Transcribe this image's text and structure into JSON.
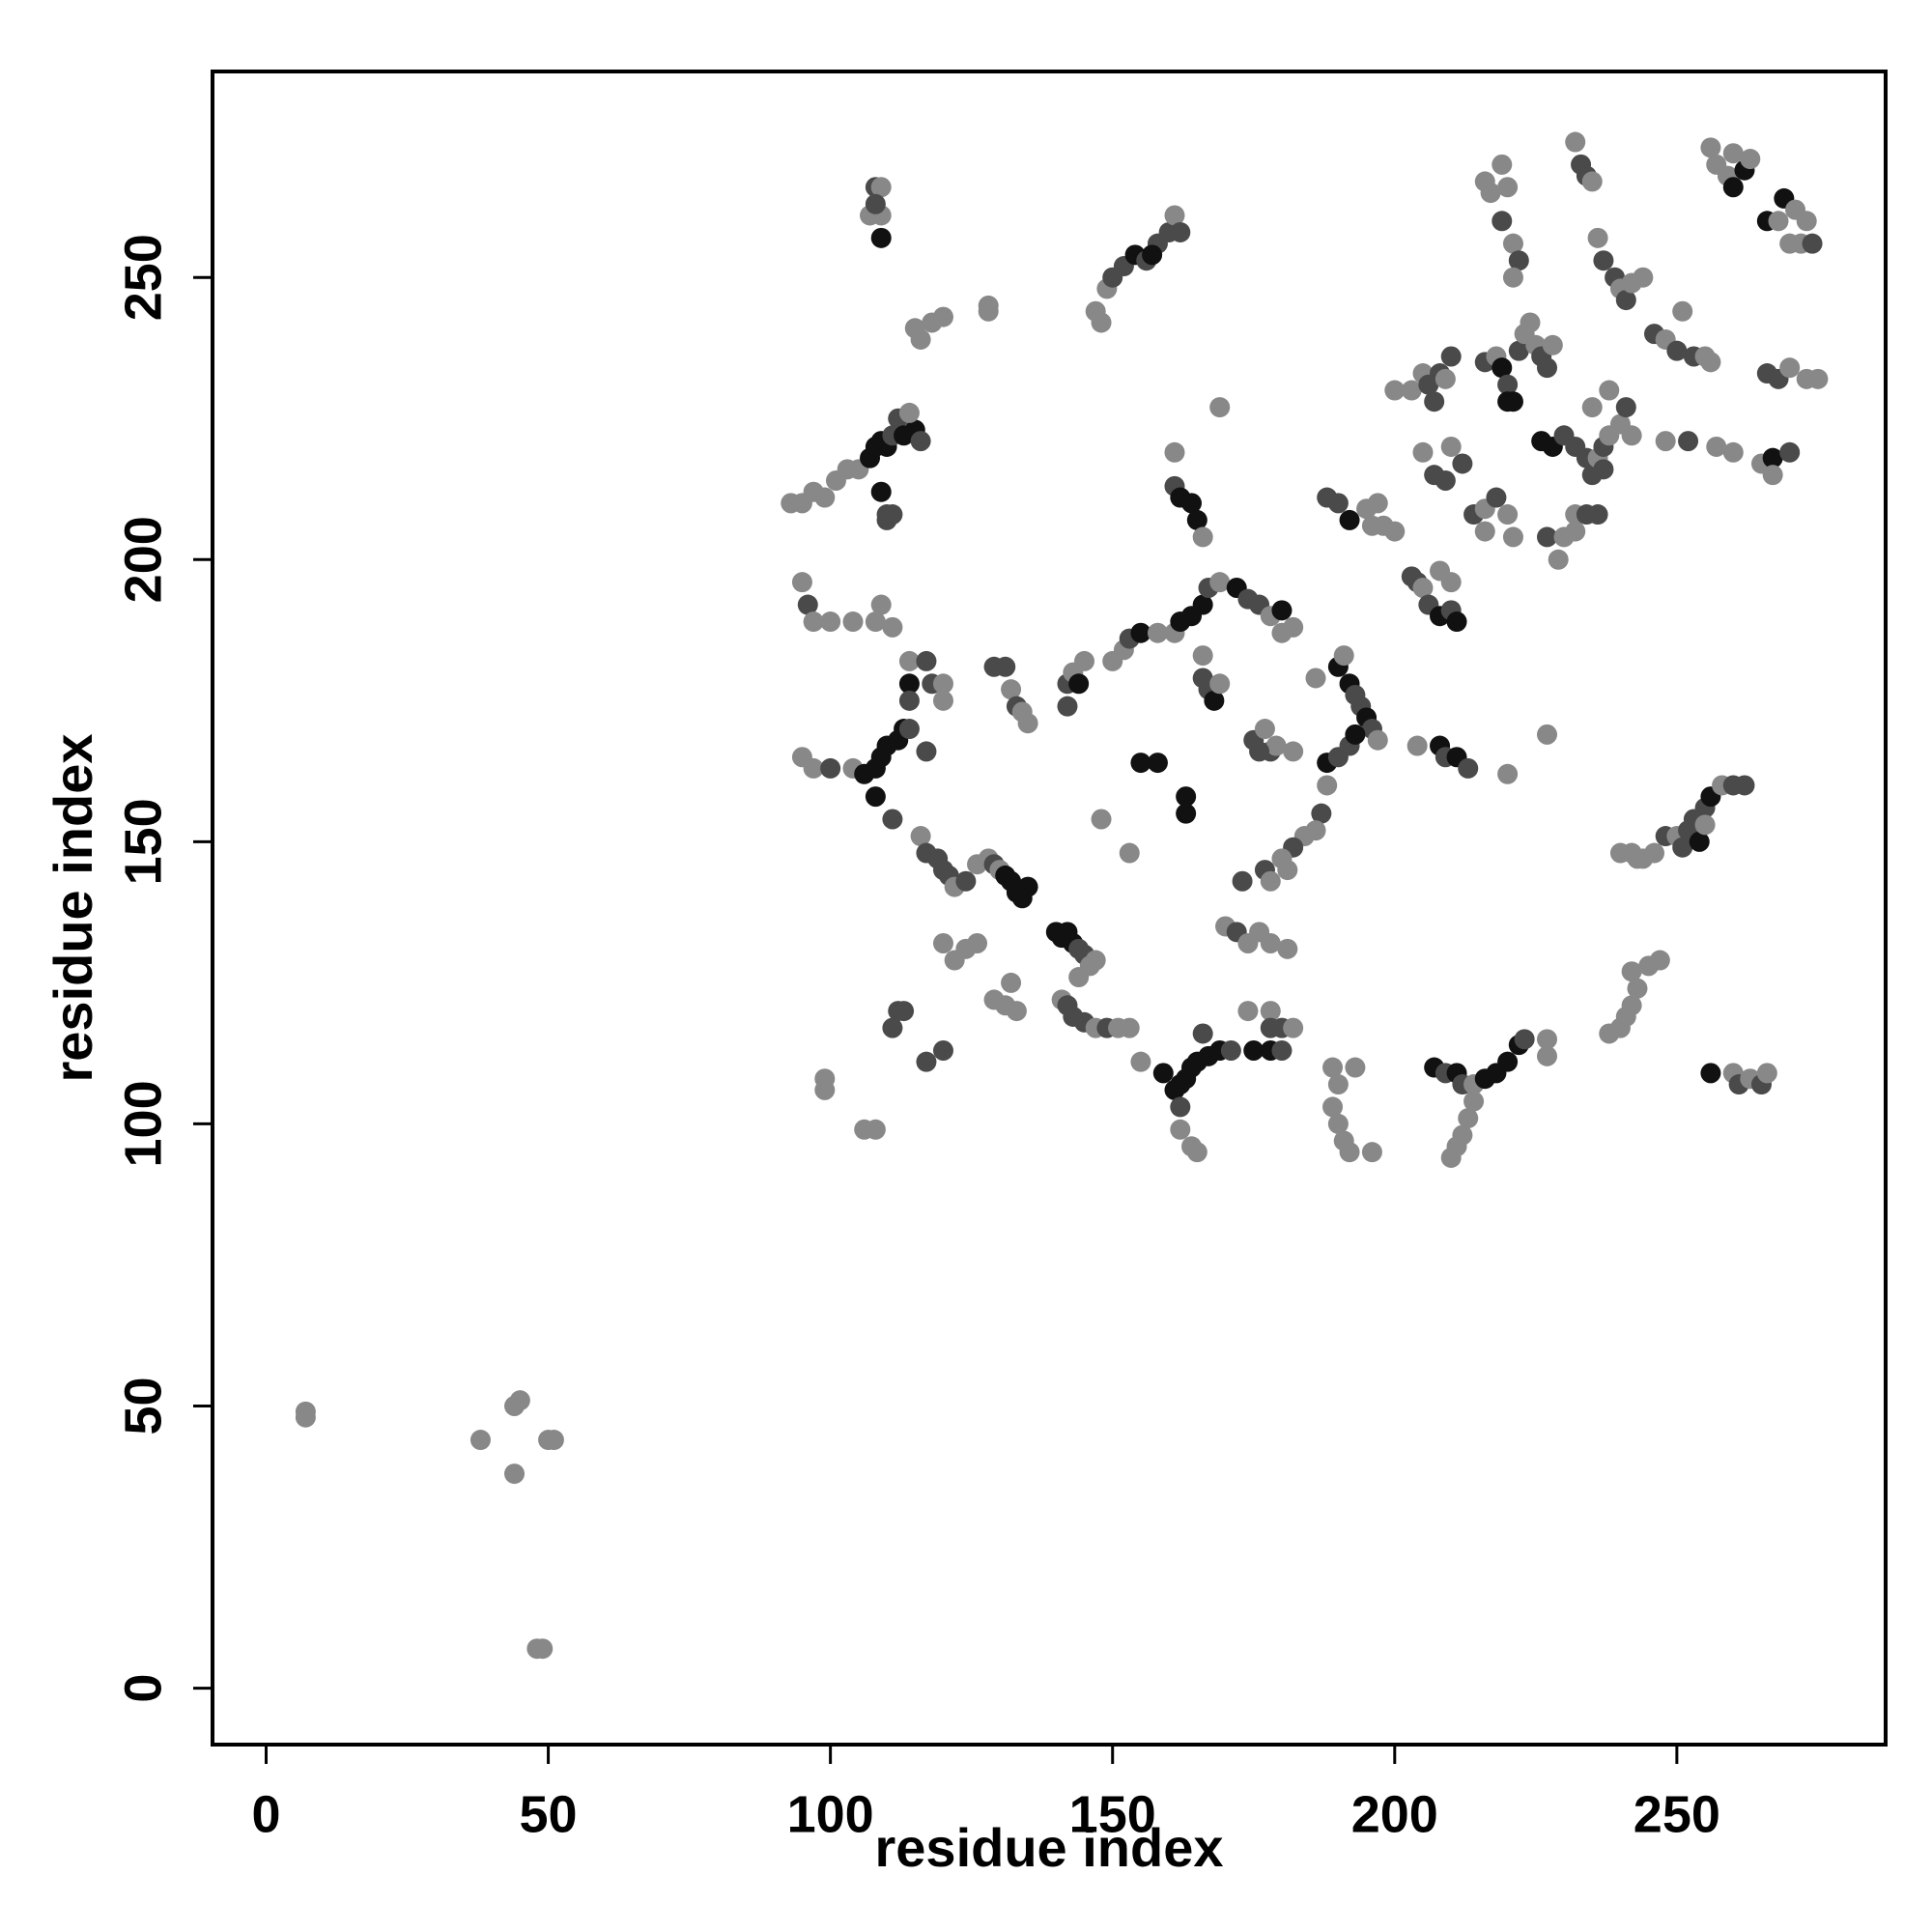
{
  "chart_data": {
    "type": "scatter",
    "x_label": "residue index",
    "y_label": "residue index",
    "xlim": [
      -9.5,
      287
    ],
    "ylim": [
      -10,
      286.5
    ],
    "xticks": [
      0,
      50,
      100,
      150,
      200,
      250
    ],
    "yticks": [
      0,
      50,
      100,
      150,
      200,
      250
    ],
    "x": [
      7,
      7,
      38,
      44,
      45,
      44,
      50,
      51,
      48,
      49,
      108,
      109,
      107,
      109,
      109,
      108,
      115,
      116,
      118,
      120,
      128,
      128,
      147,
      148,
      149,
      150,
      152,
      154,
      156,
      158,
      160,
      161,
      162,
      157,
      93,
      95,
      97,
      99,
      101,
      103,
      105,
      107,
      108,
      109,
      110,
      111,
      112,
      113,
      115,
      116,
      109,
      110,
      111,
      110,
      114,
      95,
      96,
      97,
      100,
      104,
      108,
      109,
      111,
      95,
      97,
      100,
      104,
      106,
      108,
      109,
      110,
      112,
      113,
      114,
      108,
      111,
      114,
      114,
      114,
      117,
      118,
      120,
      120,
      117,
      116,
      117,
      119,
      120,
      121,
      122,
      124,
      126,
      128,
      129,
      130,
      131,
      132,
      133,
      134,
      135,
      120,
      122,
      124,
      126,
      129,
      131,
      132,
      133,
      112,
      113,
      111,
      117,
      120,
      99,
      99,
      106,
      108,
      140,
      141,
      142,
      143,
      144,
      145,
      146,
      147,
      144,
      141,
      142,
      143,
      145,
      147,
      149,
      151,
      153,
      155,
      159,
      129,
      131,
      132,
      133,
      134,
      135,
      142,
      143,
      144,
      145,
      142,
      153,
      148,
      155,
      158,
      163,
      163,
      150,
      152,
      153,
      155,
      158,
      161,
      162,
      164,
      166,
      167,
      169,
      172,
      174,
      176,
      178,
      180,
      182,
      180,
      161,
      162,
      164,
      165,
      166,
      161,
      169,
      166,
      166,
      167,
      168,
      169,
      186,
      190,
      191,
      192,
      193,
      194,
      195,
      196,
      197,
      188,
      190,
      192,
      193,
      188,
      187,
      186,
      184,
      182,
      175,
      177,
      178,
      179,
      182,
      176,
      173,
      177,
      178,
      181,
      180,
      170,
      172,
      174,
      176,
      178,
      181,
      174,
      178,
      178,
      180,
      182,
      161,
      162,
      163,
      164,
      165,
      167,
      169,
      171,
      175,
      178,
      180,
      166,
      162,
      162,
      164,
      165,
      189,
      190,
      193,
      189,
      190,
      191,
      192,
      196,
      207,
      209,
      211,
      212,
      214,
      216,
      218,
      220,
      222,
      223,
      227,
      227,
      210,
      211,
      212,
      213,
      214,
      204,
      208,
      209,
      211,
      213,
      220,
      227,
      188,
      190,
      192,
      195,
      197,
      198,
      200,
      196,
      203,
      204,
      205,
      206,
      208,
      210,
      211,
      208,
      210,
      200,
      203,
      205,
      206,
      207,
      208,
      210,
      209,
      205,
      207,
      209,
      210,
      212,
      214,
      216,
      218,
      220,
      221,
      216,
      216,
      218,
      219,
      220,
      221,
      222,
      223,
      224,
      225,
      226,
      227,
      228,
      220,
      226,
      228,
      230,
      232,
      234,
      235,
      236,
      237,
      238,
      240,
      241,
      238,
      235,
      242,
      237,
      227,
      229,
      230,
      232,
      232,
      234,
      236,
      216,
      217,
      219,
      220,
      219,
      221,
      222,
      221,
      232,
      233,
      234,
      235,
      236,
      237,
      239,
      240,
      241,
      242,
      244,
      246,
      248,
      250,
      251,
      253,
      255,
      256,
      256,
      257,
      259,
      260,
      262,
      260,
      263,
      266,
      268,
      269,
      271,
      273,
      272,
      274,
      270,
      266,
      268,
      270,
      273,
      275,
      248,
      252,
      257,
      260,
      265,
      267,
      270,
      267,
      240,
      242,
      243,
      244,
      246,
      248,
      250,
      251,
      252,
      253,
      255,
      256,
      258,
      260,
      262,
      254,
      255,
      238,
      240,
      241,
      242,
      243,
      245,
      247,
      242,
      256,
      260,
      261,
      263,
      265,
      266
    ],
    "values": [
      49,
      48,
      44,
      50,
      51,
      38,
      44,
      44,
      7,
      7,
      266,
      266,
      261,
      261,
      257,
      263,
      241,
      239,
      242,
      243,
      245,
      244,
      244,
      242,
      248,
      250,
      252,
      254,
      253,
      256,
      258,
      261,
      258,
      254,
      210,
      210,
      212,
      211,
      214,
      216,
      216,
      218,
      220,
      221,
      220,
      222,
      225,
      222,
      223,
      221,
      212,
      208,
      208,
      207,
      226,
      196,
      192,
      189,
      189,
      189,
      189,
      192,
      188,
      165,
      163,
      163,
      163,
      162,
      163,
      165,
      167,
      168,
      170,
      170,
      158,
      154,
      182,
      178,
      175,
      182,
      178,
      178,
      175,
      166,
      151,
      148,
      147,
      145,
      144,
      142,
      143,
      146,
      147,
      146,
      145,
      144,
      143,
      141,
      140,
      142,
      132,
      129,
      131,
      132,
      122,
      121,
      125,
      120,
      120,
      120,
      117,
      111,
      113,
      108,
      106,
      99,
      99,
      134,
      133,
      134,
      132,
      131,
      130,
      128,
      129,
      126,
      122,
      121,
      119,
      118,
      117,
      117,
      117,
      117,
      111,
      109,
      181,
      181,
      177,
      174,
      173,
      171,
      178,
      180,
      178,
      182,
      174,
      148,
      154,
      164,
      164,
      158,
      155,
      182,
      184,
      186,
      187,
      187,
      187,
      189,
      190,
      192,
      195,
      196,
      195,
      193,
      192,
      190,
      191,
      188,
      187,
      213,
      211,
      210,
      207,
      204,
      219,
      227,
      183,
      179,
      177,
      175,
      178,
      179,
      181,
      183,
      178,
      176,
      174,
      172,
      170,
      168,
      164,
      165,
      167,
      169,
      160,
      155,
      152,
      151,
      149,
      168,
      170,
      166,
      167,
      166,
      166,
      143,
      145,
      143,
      145,
      147,
      135,
      134,
      132,
      134,
      132,
      131,
      120,
      120,
      117,
      117,
      117,
      106,
      107,
      108,
      110,
      111,
      112,
      113,
      113,
      113,
      113,
      113,
      116,
      103,
      99,
      96,
      95,
      110,
      107,
      110,
      103,
      100,
      97,
      95,
      95,
      110,
      109,
      109,
      107,
      107,
      108,
      109,
      111,
      114,
      115,
      115,
      112,
      94,
      96,
      98,
      101,
      104,
      167,
      167,
      165,
      165,
      163,
      162,
      169,
      211,
      210,
      207,
      209,
      210,
      206,
      205,
      206,
      197,
      196,
      195,
      192,
      190,
      191,
      189,
      198,
      196,
      230,
      230,
      233,
      231,
      228,
      233,
      236,
      232,
      219,
      215,
      214,
      220,
      217,
      208,
      209,
      211,
      208,
      204,
      205,
      235,
      236,
      234,
      231,
      228,
      237,
      240,
      242,
      238,
      236,
      234,
      238,
      228,
      221,
      220,
      222,
      220,
      218,
      215,
      218,
      220,
      222,
      224,
      227,
      230,
      227,
      222,
      216,
      204,
      200,
      204,
      205,
      208,
      208,
      208,
      267,
      265,
      270,
      266,
      260,
      256,
      253,
      250,
      274,
      270,
      268,
      267,
      257,
      253,
      250,
      248,
      246,
      249,
      250,
      240,
      239,
      237,
      244,
      236,
      236,
      235,
      273,
      270,
      268,
      266,
      269,
      272,
      271,
      260,
      260,
      264,
      262,
      260,
      256,
      256,
      256,
      233,
      232,
      234,
      232,
      232,
      221,
      221,
      220,
      219,
      217,
      218,
      219,
      215,
      148,
      148,
      147,
      147,
      148,
      151,
      151,
      149,
      152,
      154,
      156,
      158,
      160,
      160,
      160,
      150,
      153,
      116,
      117,
      119,
      121,
      124,
      128,
      129,
      127,
      109,
      109,
      107,
      108,
      107,
      109
    ],
    "colors": [
      "#888",
      "#888",
      "#888",
      "#888",
      "#888",
      "#888",
      "#888",
      "#888",
      "#888",
      "#888",
      "#4a4a4a",
      "#888",
      "#888",
      "#888",
      "#111",
      "#4a4a4a",
      "#888",
      "#888",
      "#888",
      "#888",
      "#888",
      "#888",
      "#888",
      "#888",
      "#888",
      "#4a4a4a",
      "#4a4a4a",
      "#111",
      "#4a4a4a",
      "#4a4a4a",
      "#4a4a4a",
      "#888",
      "#4a4a4a",
      "#111",
      "#888",
      "#888",
      "#888",
      "#888",
      "#888",
      "#888",
      "#888",
      "#111",
      "#111",
      "#111",
      "#111",
      "#4a4a4a",
      "#4a4a4a",
      "#111",
      "#111",
      "#4a4a4a",
      "#111",
      "#4a4a4a",
      "#4a4a4a",
      "#4a4a4a",
      "#888",
      "#888",
      "#4a4a4a",
      "#888",
      "#888",
      "#888",
      "#888",
      "#888",
      "#888",
      "#888",
      "#888",
      "#4a4a4a",
      "#888",
      "#111",
      "#111",
      "#111",
      "#111",
      "#111",
      "#111",
      "#4a4a4a",
      "#111",
      "#4a4a4a",
      "#888",
      "#111",
      "#4a4a4a",
      "#4a4a4a",
      "#4a4a4a",
      "#888",
      "#888",
      "#4a4a4a",
      "#888",
      "#4a4a4a",
      "#4a4a4a",
      "#4a4a4a",
      "#4a4a4a",
      "#888",
      "#4a4a4a",
      "#888",
      "#888",
      "#4a4a4a",
      "#888",
      "#111",
      "#111",
      "#111",
      "#111",
      "#111",
      "#888",
      "#888",
      "#888",
      "#888",
      "#888",
      "#888",
      "#888",
      "#888",
      "#4a4a4a",
      "#4a4a4a",
      "#4a4a4a",
      "#4a4a4a",
      "#4a4a4a",
      "#888",
      "#888",
      "#888",
      "#888",
      "#111",
      "#111",
      "#111",
      "#111",
      "#4a4a4a",
      "#4a4a4a",
      "#888",
      "#888",
      "#888",
      "#888",
      "#4a4a4a",
      "#4a4a4a",
      "#4a4a4a",
      "#888",
      "#4a4a4a",
      "#888",
      "#888",
      "#888",
      "#111",
      "#4a4a4a",
      "#4a4a4a",
      "#888",
      "#4a4a4a",
      "#888",
      "#888",
      "#4a4a4a",
      "#888",
      "#111",
      "#888",
      "#4a4a4a",
      "#888",
      "#888",
      "#111",
      "#111",
      "#111",
      "#111",
      "#888",
      "#888",
      "#4a4a4a",
      "#111",
      "#888",
      "#888",
      "#111",
      "#111",
      "#111",
      "#4a4a4a",
      "#888",
      "#111",
      "#4a4a4a",
      "#4a4a4a",
      "#888",
      "#111",
      "#888",
      "#888",
      "#4a4a4a",
      "#111",
      "#111",
      "#111",
      "#888",
      "#888",
      "#888",
      "#888",
      "#4a4a4a",
      "#4a4a4a",
      "#111",
      "#888",
      "#888",
      "#111",
      "#888",
      "#111",
      "#4a4a4a",
      "#4a4a4a",
      "#111",
      "#4a4a4a",
      "#888",
      "#111",
      "#4a4a4a",
      "#4a4a4a",
      "#111",
      "#888",
      "#4a4a4a",
      "#888",
      "#888",
      "#4a4a4a",
      "#4a4a4a",
      "#888",
      "#4a4a4a",
      "#888",
      "#888",
      "#4a4a4a",
      "#4a4a4a",
      "#4a4a4a",
      "#888",
      "#888",
      "#888",
      "#888",
      "#4a4a4a",
      "#888",
      "#888",
      "#888",
      "#888",
      "#888",
      "#888",
      "#4a4a4a",
      "#4a4a4a",
      "#888",
      "#111",
      "#111",
      "#111",
      "#111",
      "#111",
      "#111",
      "#111",
      "#4a4a4a",
      "#111",
      "#111",
      "#4a4a4a",
      "#4a4a4a",
      "#4a4a4a",
      "#888",
      "#888",
      "#888",
      "#888",
      "#888",
      "#888",
      "#888",
      "#888",
      "#888",
      "#888",
      "#888",
      "#111",
      "#4a4a4a",
      "#111",
      "#4a4a4a",
      "#888",
      "#111",
      "#111",
      "#111",
      "#111",
      "#4a4a4a",
      "#888",
      "#888",
      "#888",
      "#888",
      "#888",
      "#888",
      "#888",
      "#888",
      "#111",
      "#4a4a4a",
      "#111",
      "#4a4a4a",
      "#888",
      "#888",
      "#4a4a4a",
      "#4a4a4a",
      "#111",
      "#888",
      "#888",
      "#888",
      "#888",
      "#888",
      "#4a4a4a",
      "#4a4a4a",
      "#888",
      "#4a4a4a",
      "#111",
      "#4a4a4a",
      "#111",
      "#888",
      "#888",
      "#888",
      "#888",
      "#888",
      "#4a4a4a",
      "#4a4a4a",
      "#4a4a4a",
      "#4a4a4a",
      "#888",
      "#888",
      "#4a4a4a",
      "#4a4a4a",
      "#888",
      "#4a4a4a",
      "#4a4a4a",
      "#888",
      "#4a4a4a",
      "#888",
      "#888",
      "#888",
      "#4a4a4a",
      "#888",
      "#111",
      "#4a4a4a",
      "#111",
      "#4a4a4a",
      "#888",
      "#888",
      "#888",
      "#4a4a4a",
      "#4a4a4a",
      "#888",
      "#111",
      "#111",
      "#111",
      "#4a4a4a",
      "#4a4a4a",
      "#4a4a4a",
      "#4a4a4a",
      "#888",
      "#4a4a4a",
      "#888",
      "#888",
      "#4a4a4a",
      "#888",
      "#888",
      "#888",
      "#4a4a4a",
      "#4a4a4a",
      "#888",
      "#888",
      "#888",
      "#888",
      "#4a4a4a",
      "#4a4a4a",
      "#888",
      "#888",
      "#888",
      "#888",
      "#4a4a4a",
      "#888",
      "#4a4a4a",
      "#888",
      "#888",
      "#4a4a4a",
      "#4a4a4a",
      "#888",
      "#888",
      "#4a4a4a",
      "#4a4a4a",
      "#888",
      "#4a4a4a",
      "#888",
      "#888",
      "#4a4a4a",
      "#888",
      "#4a4a4a",
      "#888",
      "#4a4a4a",
      "#888",
      "#888",
      "#888",
      "#888",
      "#888",
      "#111",
      "#111",
      "#888",
      "#888",
      "#111",
      "#888",
      "#111",
      "#888",
      "#888",
      "#888",
      "#4a4a4a",
      "#888",
      "#4a4a4a",
      "#4a4a4a",
      "#888",
      "#888",
      "#888",
      "#888",
      "#4a4a4a",
      "#888",
      "#888",
      "#888",
      "#111",
      "#4a4a4a",
      "#888",
      "#888",
      "#888",
      "#888",
      "#888",
      "#888",
      "#4a4a4a",
      "#888",
      "#4a4a4a",
      "#4a4a4a",
      "#4a4a4a",
      "#4a4a4a",
      "#111",
      "#888",
      "#4a4a4a",
      "#4a4a4a",
      "#111",
      "#888",
      "#888",
      "#888",
      "#888",
      "#888",
      "#888",
      "#888",
      "#888",
      "#888",
      "#111",
      "#888",
      "#4a4a4a",
      "#888",
      "#4a4a4a",
      "#888"
    ]
  }
}
